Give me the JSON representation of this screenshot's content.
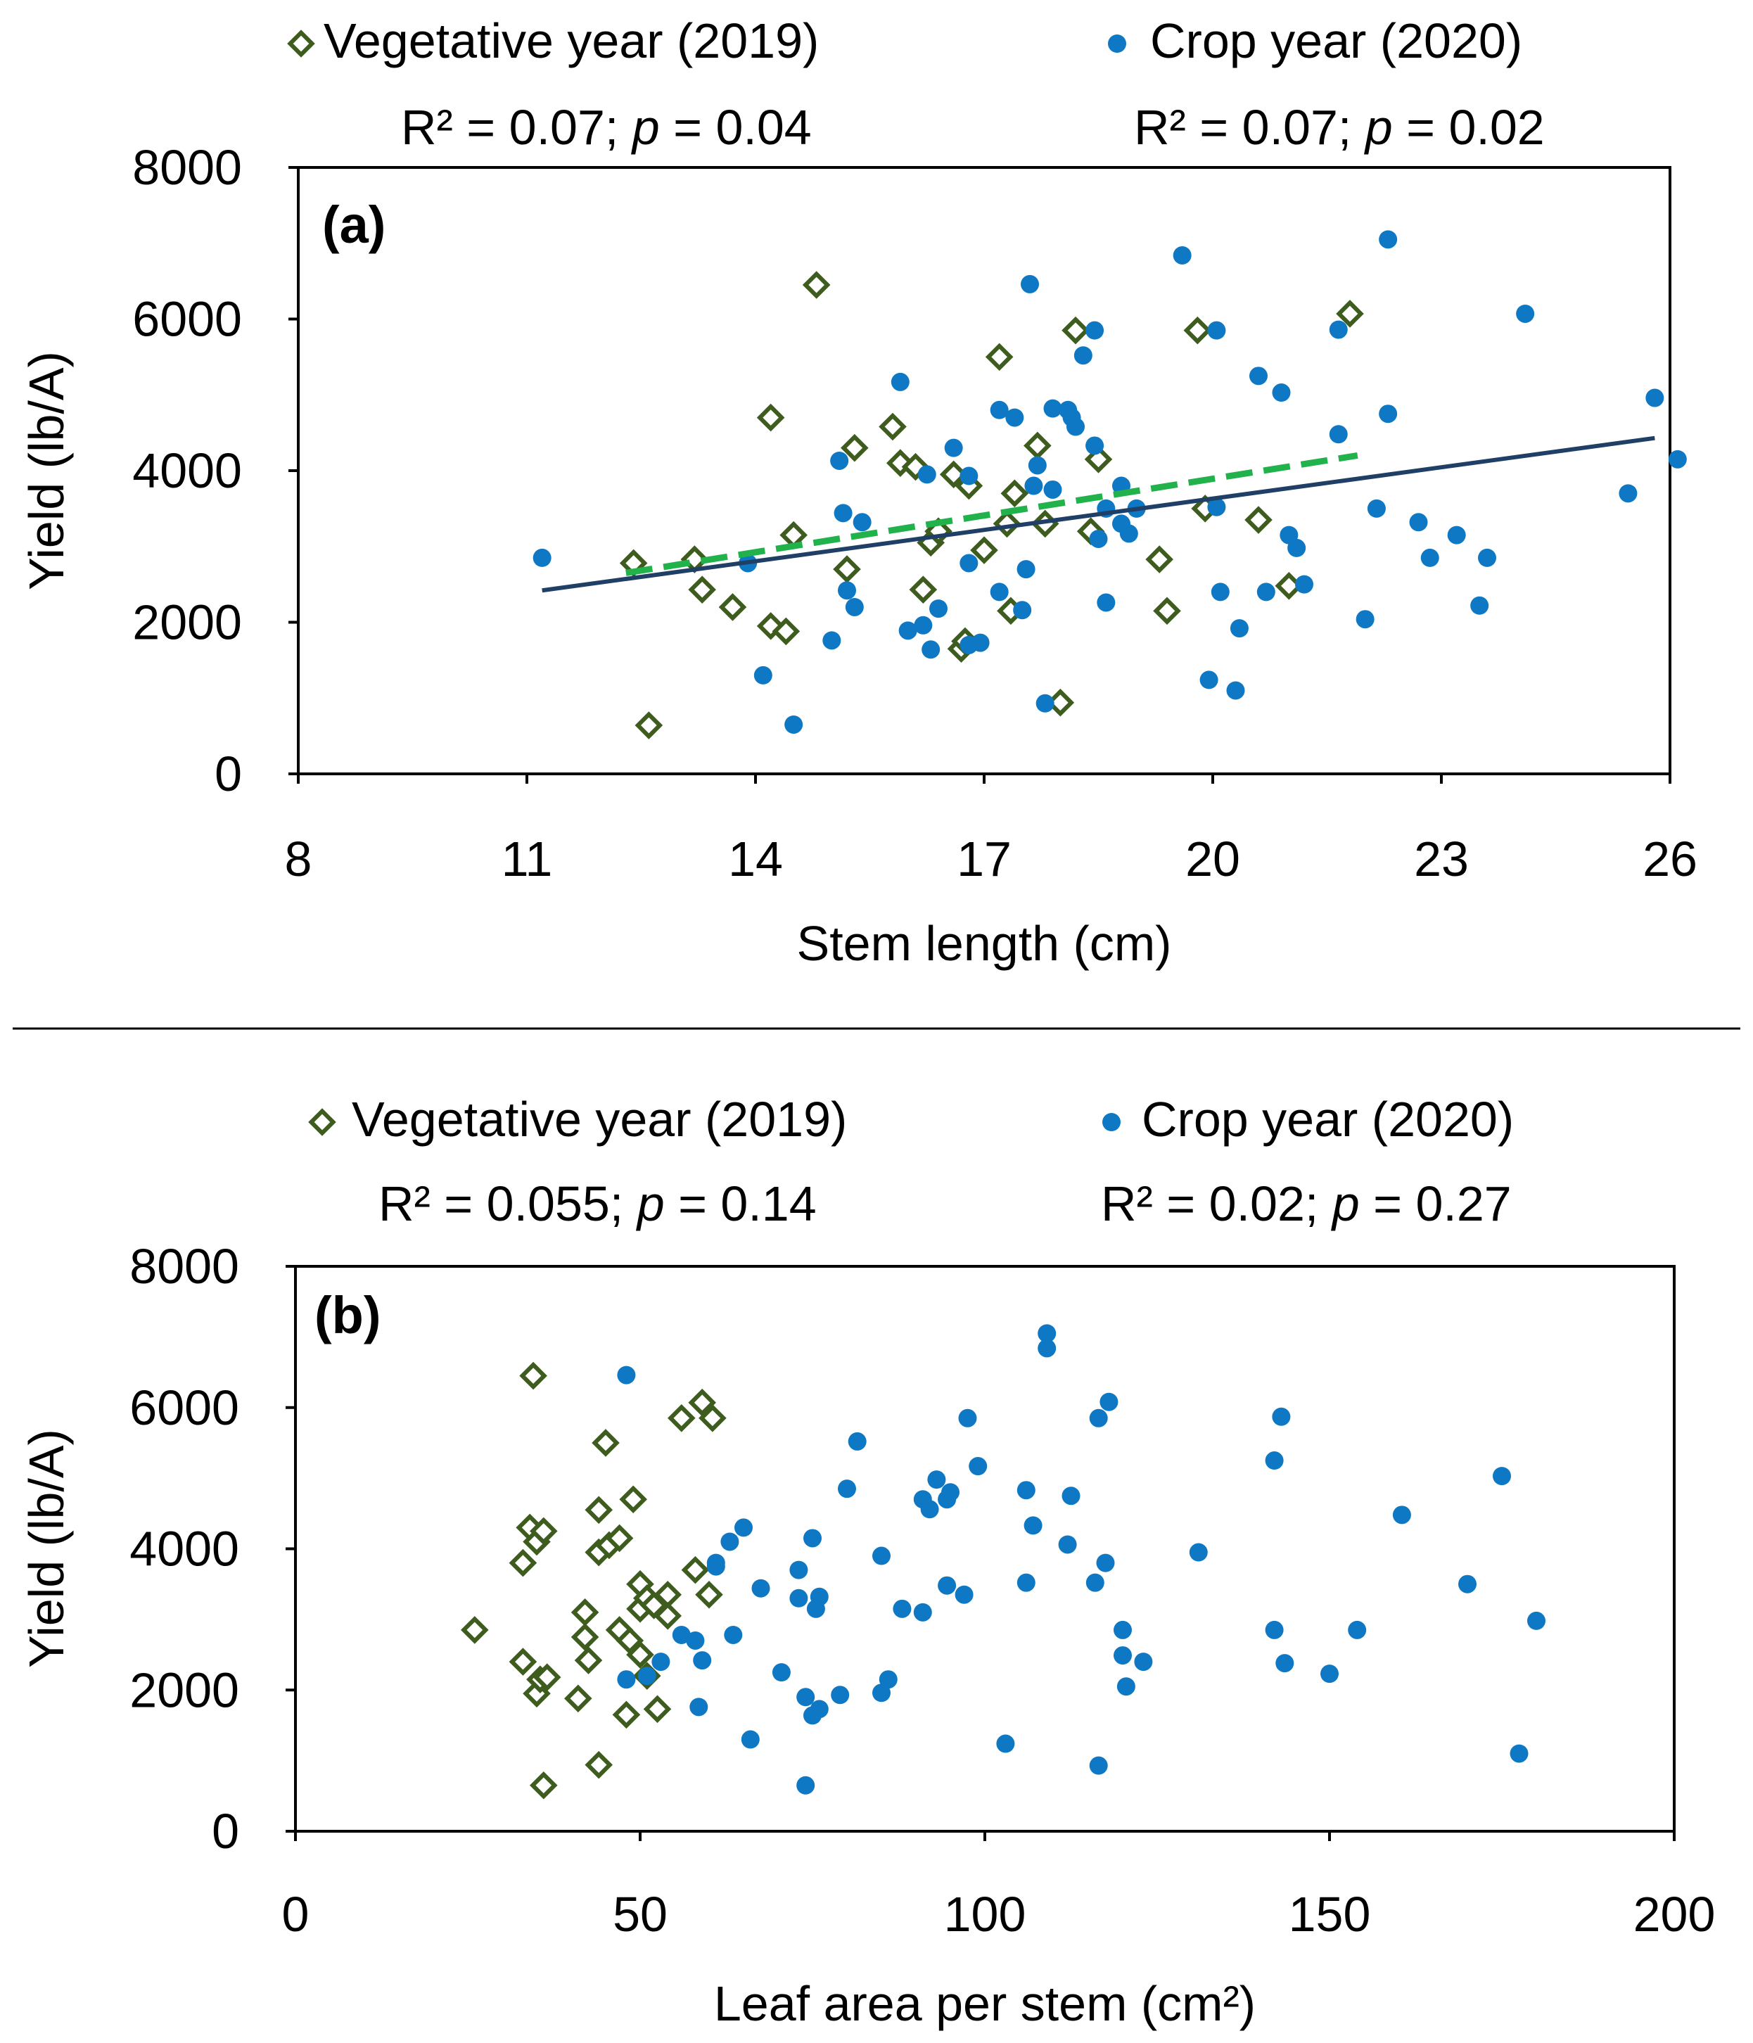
{
  "colors": {
    "vegetative": "#3d5c1e",
    "crop": "#0e78c4",
    "veg_trend": "#22b24c",
    "crop_trend": "#1f3f66",
    "axis": "#000000"
  },
  "chart_data": [
    {
      "type": "scatter",
      "panel_label": "(a)",
      "xlabel": "Stem length (cm)",
      "ylabel": "Yield (lb/A)",
      "xlim": [
        8,
        26
      ],
      "ylim": [
        0,
        8000
      ],
      "xticks": [
        8,
        11,
        14,
        17,
        20,
        23,
        26
      ],
      "yticks": [
        0,
        2000,
        4000,
        6000,
        8000
      ],
      "legend": {
        "vegetative": "Vegetative year (2019)",
        "crop": "Crop year (2020)",
        "veg_stats_prefix": "R² = 0.07; ",
        "veg_stats_p": "p",
        "veg_stats_value": " = 0.04",
        "crop_stats_prefix": "R² = 0.07; ",
        "crop_stats_p": "p",
        "crop_stats_value": " = 0.02"
      },
      "series": [
        {
          "name": "Vegetative year (2019)",
          "marker": "diamond-open",
          "points": [
            [
              12.4,
              2780
            ],
            [
              12.6,
              640
            ],
            [
              13.2,
              2830
            ],
            [
              13.3,
              2430
            ],
            [
              13.7,
              2200
            ],
            [
              14.2,
              1950
            ],
            [
              14.2,
              4700
            ],
            [
              14.4,
              1880
            ],
            [
              14.5,
              3150
            ],
            [
              14.8,
              6450
            ],
            [
              15.2,
              2700
            ],
            [
              15.3,
              4300
            ],
            [
              15.8,
              4580
            ],
            [
              15.9,
              4100
            ],
            [
              16.1,
              4050
            ],
            [
              16.2,
              2430
            ],
            [
              16.3,
              3050
            ],
            [
              16.4,
              3200
            ],
            [
              16.6,
              3950
            ],
            [
              16.7,
              1650
            ],
            [
              16.75,
              1750
            ],
            [
              16.8,
              3800
            ],
            [
              17.0,
              2950
            ],
            [
              17.2,
              5500
            ],
            [
              17.3,
              3300
            ],
            [
              17.35,
              2150
            ],
            [
              17.4,
              3700
            ],
            [
              17.7,
              4330
            ],
            [
              17.8,
              3300
            ],
            [
              18.0,
              940
            ],
            [
              18.2,
              5850
            ],
            [
              18.4,
              3200
            ],
            [
              18.5,
              4150
            ],
            [
              19.3,
              2830
            ],
            [
              19.4,
              2150
            ],
            [
              19.8,
              5850
            ],
            [
              19.9,
              3500
            ],
            [
              20.6,
              3350
            ],
            [
              21.0,
              2480
            ],
            [
              21.8,
              6070
            ]
          ]
        },
        {
          "name": "Crop year (2020)",
          "marker": "circle",
          "points": [
            [
              11.2,
              2850
            ],
            [
              13.9,
              2780
            ],
            [
              14.1,
              1300
            ],
            [
              14.5,
              650
            ],
            [
              15.0,
              1760
            ],
            [
              15.1,
              4130
            ],
            [
              15.15,
              3440
            ],
            [
              15.2,
              2420
            ],
            [
              15.3,
              2200
            ],
            [
              15.4,
              3320
            ],
            [
              15.9,
              5170
            ],
            [
              16.0,
              1890
            ],
            [
              16.2,
              1960
            ],
            [
              16.25,
              3950
            ],
            [
              16.3,
              1640
            ],
            [
              16.4,
              2180
            ],
            [
              16.6,
              4300
            ],
            [
              16.8,
              3930
            ],
            [
              16.8,
              2780
            ],
            [
              16.8,
              1700
            ],
            [
              16.95,
              1730
            ],
            [
              17.2,
              2400
            ],
            [
              17.2,
              4800
            ],
            [
              17.4,
              4700
            ],
            [
              17.5,
              2160
            ],
            [
              17.55,
              2700
            ],
            [
              17.6,
              6460
            ],
            [
              17.65,
              3800
            ],
            [
              17.7,
              4070
            ],
            [
              17.8,
              930
            ],
            [
              17.9,
              4820
            ],
            [
              17.9,
              3750
            ],
            [
              18.1,
              4800
            ],
            [
              18.15,
              4700
            ],
            [
              18.2,
              4580
            ],
            [
              18.3,
              5520
            ],
            [
              18.45,
              5850
            ],
            [
              18.45,
              4330
            ],
            [
              18.5,
              3100
            ],
            [
              18.6,
              3500
            ],
            [
              18.6,
              2260
            ],
            [
              18.8,
              3300
            ],
            [
              18.8,
              3800
            ],
            [
              18.9,
              3170
            ],
            [
              19.0,
              3500
            ],
            [
              19.6,
              6840
            ],
            [
              19.95,
              1240
            ],
            [
              20.05,
              5850
            ],
            [
              20.05,
              3520
            ],
            [
              20.1,
              2400
            ],
            [
              20.3,
              1100
            ],
            [
              20.35,
              1920
            ],
            [
              20.6,
              5250
            ],
            [
              20.7,
              2400
            ],
            [
              20.9,
              5030
            ],
            [
              21.0,
              3150
            ],
            [
              21.1,
              2980
            ],
            [
              21.2,
              2500
            ],
            [
              21.65,
              5860
            ],
            [
              21.65,
              4480
            ],
            [
              22.0,
              2040
            ],
            [
              22.15,
              3500
            ],
            [
              22.3,
              7050
            ],
            [
              22.3,
              4750
            ],
            [
              22.7,
              3320
            ],
            [
              22.85,
              2850
            ],
            [
              23.2,
              3150
            ],
            [
              23.5,
              2220
            ],
            [
              23.6,
              2850
            ],
            [
              24.1,
              6070
            ],
            [
              25.45,
              3700
            ],
            [
              25.8,
              4960
            ],
            [
              26.1,
              4150
            ]
          ]
        }
      ],
      "trendlines": [
        {
          "name": "Vegetative year (2019) trend",
          "style": "dashed",
          "from": [
            12.3,
            2650
          ],
          "to": [
            21.9,
            4200
          ]
        },
        {
          "name": "Crop year (2020) trend",
          "style": "solid",
          "from": [
            11.2,
            2420
          ],
          "to": [
            25.8,
            4430
          ]
        }
      ]
    },
    {
      "type": "scatter",
      "panel_label": "(b)",
      "xlabel": "Leaf area per stem (cm²)",
      "ylabel": "Yield (lb/A)",
      "xlim": [
        0,
        200
      ],
      "ylim": [
        0,
        8000
      ],
      "xticks": [
        0,
        50,
        100,
        150,
        200
      ],
      "yticks": [
        0,
        2000,
        4000,
        6000,
        8000
      ],
      "legend": {
        "vegetative": "Vegetative year (2019)",
        "crop": "Crop year (2020)",
        "veg_stats_prefix": "R² = 0.055; ",
        "veg_stats_p": "p",
        "veg_stats_value": " = 0.14",
        "crop_stats_prefix": "R² = 0.02; ",
        "crop_stats_p": "p",
        "crop_stats_value": " = 0.27"
      },
      "series": [
        {
          "name": "Vegetative year (2019)",
          "marker": "diamond-open",
          "points": [
            [
              26,
              2850
            ],
            [
              33,
              2400
            ],
            [
              33,
              3800
            ],
            [
              34,
              4300
            ],
            [
              34.5,
              6450
            ],
            [
              35,
              4100
            ],
            [
              35,
              1950
            ],
            [
              35.5,
              2150
            ],
            [
              36,
              4250
            ],
            [
              36,
              650
            ],
            [
              36.5,
              2180
            ],
            [
              41,
              1880
            ],
            [
              42,
              2750
            ],
            [
              42,
              3100
            ],
            [
              42.5,
              2420
            ],
            [
              44,
              3950
            ],
            [
              44,
              940
            ],
            [
              44,
              4550
            ],
            [
              45,
              5500
            ],
            [
              45.5,
              4050
            ],
            [
              47,
              2850
            ],
            [
              47,
              4150
            ],
            [
              48,
              1650
            ],
            [
              48.5,
              2700
            ],
            [
              49,
              4700
            ],
            [
              50,
              3500
            ],
            [
              50,
              3150
            ],
            [
              50,
              2500
            ],
            [
              51,
              3300
            ],
            [
              51,
              2200
            ],
            [
              52,
              3200
            ],
            [
              52.5,
              1730
            ],
            [
              54,
              3350
            ],
            [
              54,
              3050
            ],
            [
              56,
              5850
            ],
            [
              58,
              3700
            ],
            [
              59,
              6070
            ],
            [
              60,
              3350
            ],
            [
              60.5,
              5850
            ]
          ]
        },
        {
          "name": "Crop year (2020)",
          "marker": "circle",
          "points": [
            [
              48,
              6460
            ],
            [
              48,
              2150
            ],
            [
              51,
              2200
            ],
            [
              53,
              2400
            ],
            [
              56,
              2780
            ],
            [
              58,
              2700
            ],
            [
              58.5,
              1760
            ],
            [
              59,
              2420
            ],
            [
              61,
              3800
            ],
            [
              61,
              3750
            ],
            [
              63,
              4100
            ],
            [
              63.5,
              2780
            ],
            [
              65,
              4300
            ],
            [
              66,
              1300
            ],
            [
              67.5,
              3440
            ],
            [
              70.5,
              2250
            ],
            [
              73,
              3700
            ],
            [
              73,
              3300
            ],
            [
              74,
              1900
            ],
            [
              74,
              650
            ],
            [
              75,
              4150
            ],
            [
              75,
              1640
            ],
            [
              75.5,
              3150
            ],
            [
              76,
              1730
            ],
            [
              76,
              3320
            ],
            [
              79,
              1930
            ],
            [
              80,
              4850
            ],
            [
              81.5,
              5520
            ],
            [
              85,
              3900
            ],
            [
              85,
              1960
            ],
            [
              86,
              2150
            ],
            [
              88,
              3150
            ],
            [
              91,
              3100
            ],
            [
              91,
              4700
            ],
            [
              92,
              4560
            ],
            [
              93,
              4980
            ],
            [
              94.5,
              4700
            ],
            [
              95,
              4800
            ],
            [
              94.5,
              3480
            ],
            [
              97,
              3350
            ],
            [
              97.5,
              5850
            ],
            [
              99,
              5170
            ],
            [
              103,
              1240
            ],
            [
              106,
              4830
            ],
            [
              106,
              3520
            ],
            [
              107,
              4330
            ],
            [
              109,
              7050
            ],
            [
              109,
              6840
            ],
            [
              112,
              4060
            ],
            [
              112.5,
              4750
            ],
            [
              116,
              3520
            ],
            [
              116.5,
              930
            ],
            [
              116.5,
              5850
            ],
            [
              117.5,
              3800
            ],
            [
              118,
              6080
            ],
            [
              120,
              2850
            ],
            [
              120,
              2490
            ],
            [
              120.5,
              2050
            ],
            [
              123,
              2400
            ],
            [
              131,
              3950
            ],
            [
              142,
              5250
            ],
            [
              142,
              2850
            ],
            [
              143,
              5870
            ],
            [
              143.5,
              2380
            ],
            [
              150,
              2230
            ],
            [
              154,
              2850
            ],
            [
              160.5,
              4480
            ],
            [
              170,
              3500
            ],
            [
              175,
              5030
            ],
            [
              177.5,
              1100
            ],
            [
              180,
              2980
            ]
          ]
        }
      ],
      "trendlines": []
    }
  ]
}
